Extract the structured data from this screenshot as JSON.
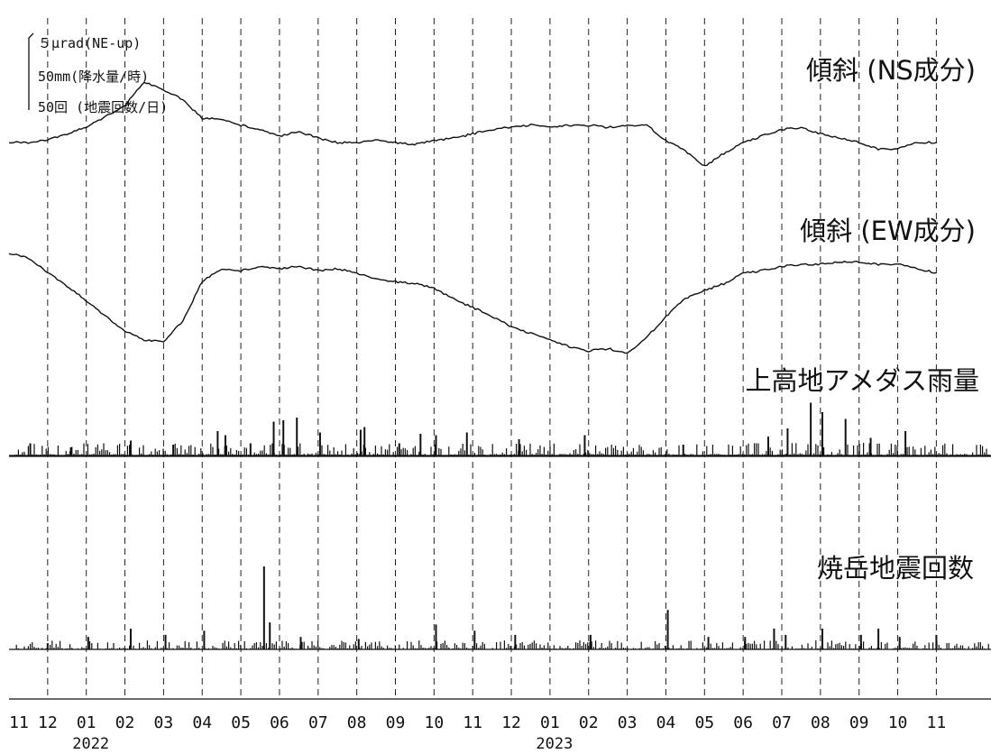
{
  "scale_legend": {
    "tilt": "５μrad(NE-up)",
    "rain": "50mm(降水量/時)",
    "quakes": "50回 (地震回数/日)"
  },
  "panels": {
    "ns": "傾斜 (NS成分)",
    "ew": "傾斜 (EW成分)",
    "rain": "上高地アメダス雨量",
    "quakes": "焼岳地震回数"
  },
  "x_ticks": [
    "11",
    "12",
    "01",
    "02",
    "03",
    "04",
    "05",
    "06",
    "07",
    "08",
    "09",
    "10",
    "11",
    "12",
    "01",
    "02",
    "03",
    "04",
    "05",
    "06",
    "07",
    "08",
    "09",
    "10",
    "11"
  ],
  "years": [
    "2022",
    "2023"
  ],
  "chart_data": {
    "type": "line",
    "x_unit": "month",
    "x_start": "2021-11",
    "x_end": "2023-11",
    "series": [
      {
        "name": "傾斜 (NS成分)",
        "unit": "μrad",
        "x": [
          0,
          0.5,
          1,
          1.5,
          2,
          2.5,
          3,
          3.5,
          4,
          4.5,
          5,
          5.5,
          6,
          6.5,
          7,
          7.5,
          8,
          8.5,
          9,
          9.5,
          10,
          10.5,
          11,
          11.5,
          12,
          12.5,
          13,
          13.5,
          14,
          14.5,
          15,
          15.5,
          16,
          16.5,
          17,
          17.5,
          18,
          18.5,
          19,
          19.5,
          20,
          20.5,
          21,
          21.5,
          22,
          22.5,
          23,
          23.5,
          24
        ],
        "y": [
          0.0,
          0.0,
          0.15,
          0.6,
          1.05,
          1.8,
          2.55,
          4.2,
          3.6,
          3.0,
          1.65,
          1.65,
          1.2,
          0.9,
          0.45,
          0.75,
          0.3,
          0.0,
          0.0,
          0.15,
          0.0,
          -0.15,
          0.15,
          0.3,
          0.6,
          0.9,
          1.05,
          1.2,
          1.05,
          1.2,
          1.2,
          1.05,
          1.2,
          1.2,
          0.15,
          -0.6,
          -1.65,
          -0.75,
          0.0,
          0.45,
          0.9,
          1.05,
          0.6,
          0.3,
          0.0,
          -0.45,
          -0.45,
          0.0,
          0.0
        ]
      },
      {
        "name": "傾斜 (EW成分)",
        "unit": "μrad",
        "x": [
          0,
          0.5,
          1,
          1.5,
          2,
          2.5,
          3,
          3.5,
          4,
          4.5,
          5,
          5.5,
          6,
          6.5,
          7,
          7.5,
          8,
          8.5,
          9,
          9.5,
          10,
          10.5,
          11,
          11.5,
          12,
          12.5,
          13,
          13.5,
          14,
          14.5,
          15,
          15.5,
          16,
          16.5,
          17,
          17.5,
          18,
          18.5,
          19,
          19.5,
          20,
          20.5,
          21,
          21.5,
          22,
          22.5,
          23,
          23.5,
          24
        ],
        "y": [
          0.0,
          -0.3,
          -1.35,
          -2.25,
          -3.3,
          -4.35,
          -5.4,
          -6.0,
          -6.15,
          -4.65,
          -1.95,
          -1.05,
          -1.2,
          -0.9,
          -1.05,
          -0.9,
          -1.2,
          -1.05,
          -1.35,
          -1.8,
          -1.95,
          -2.1,
          -2.4,
          -3.15,
          -3.75,
          -4.35,
          -5.1,
          -5.55,
          -6.0,
          -6.45,
          -6.75,
          -6.6,
          -6.9,
          -5.85,
          -4.35,
          -3.15,
          -2.55,
          -2.1,
          -1.35,
          -1.2,
          -0.9,
          -0.75,
          -0.75,
          -0.6,
          -0.6,
          -0.75,
          -0.75,
          -1.05,
          -1.35
        ]
      },
      {
        "name": "上高地アメダス雨量",
        "type": "bar",
        "unit": "mm/h",
        "x": [
          0.55,
          1.6,
          3.15,
          4.25,
          5.4,
          5.6,
          6.25,
          6.85,
          7.1,
          7.45,
          8.05,
          9.1,
          9.2,
          10.1,
          10.65,
          11.05,
          11.85,
          13.2,
          14.9,
          17.45,
          19.65,
          20.15,
          20.75,
          21.05,
          21.65,
          22.3,
          23.2
        ],
        "y": [
          9,
          6,
          11,
          8,
          18,
          15,
          9,
          25,
          26,
          28,
          17,
          19,
          21,
          9,
          16,
          15,
          17,
          12,
          15,
          8,
          14,
          20,
          39,
          32,
          27,
          13,
          18
        ]
      },
      {
        "name": "焼岳地震回数",
        "type": "bar",
        "unit": "回/日",
        "x": [
          1.0,
          2.05,
          3.15,
          4.05,
          5.05,
          6.6,
          6.75,
          7.55,
          9.05,
          11.05,
          12.05,
          13.1,
          15.05,
          17.05,
          18.1,
          19.05,
          19.8,
          20.1,
          21.05,
          22.05,
          22.5,
          23.05,
          24.0
        ],
        "y": [
          3,
          6,
          10,
          7,
          9,
          40,
          13,
          6,
          5,
          12,
          9,
          7,
          7,
          19,
          6,
          6,
          10,
          7,
          10,
          7,
          10,
          6,
          7
        ]
      }
    ]
  }
}
